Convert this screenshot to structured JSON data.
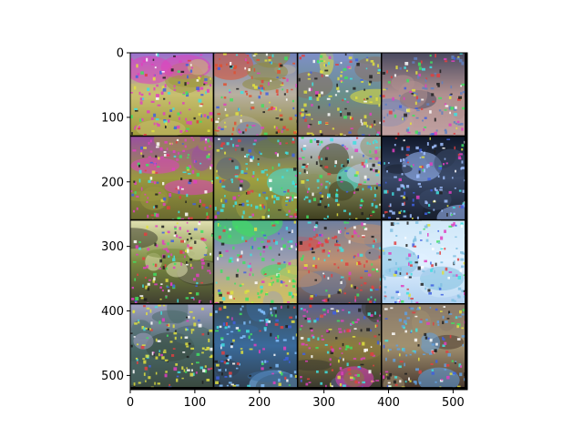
{
  "chart_data": {
    "type": "image",
    "description_source": "matplotlib imshow of a 4x4 grid of generated sky/landscape tiles",
    "xlim": [
      0,
      522
    ],
    "ylim": [
      522,
      0
    ],
    "tile_size": 128,
    "grid": {
      "rows": 4,
      "cols": 4,
      "separator_px": 2,
      "separator_color": "#000000"
    },
    "x_ticks": [
      0,
      100,
      200,
      300,
      400,
      500
    ],
    "y_ticks": [
      0,
      100,
      200,
      300,
      400,
      500
    ],
    "x_tick_labels": [
      "0",
      "100",
      "200",
      "300",
      "400",
      "500"
    ],
    "y_tick_labels": [
      "0",
      "100",
      "200",
      "300",
      "400",
      "500"
    ],
    "xlabel": "",
    "ylabel": "",
    "title": "",
    "tiles": [
      {
        "row": 0,
        "col": 0,
        "top": "#9a6fd0",
        "mid": "#c8c070",
        "bottom": "#9f9a3a",
        "accent": "#e040c0"
      },
      {
        "row": 0,
        "col": 1,
        "top": "#6f7fb8",
        "mid": "#b8b0a0",
        "bottom": "#8f8a40",
        "accent": "#e05030"
      },
      {
        "row": 0,
        "col": 2,
        "top": "#7e8fc8",
        "mid": "#6a8f8a",
        "bottom": "#8a7060",
        "accent": "#e0e040"
      },
      {
        "row": 0,
        "col": 3,
        "top": "#4a4a60",
        "mid": "#b09090",
        "bottom": "#c0a0a0",
        "accent": "#6080c0"
      },
      {
        "row": 1,
        "col": 0,
        "top": "#9a4fa0",
        "mid": "#9a9840",
        "bottom": "#6a6a30",
        "accent": "#e040c0"
      },
      {
        "row": 1,
        "col": 1,
        "top": "#5a6080",
        "mid": "#a0a040",
        "bottom": "#6a7a40",
        "accent": "#40e0e0"
      },
      {
        "row": 1,
        "col": 2,
        "top": "#c0c8e8",
        "mid": "#8a9060",
        "bottom": "#404020",
        "accent": "#40e0e0"
      },
      {
        "row": 1,
        "col": 3,
        "top": "#10182a",
        "mid": "#3a4a6a",
        "bottom": "#1a2030",
        "accent": "#a0c0ff"
      },
      {
        "row": 2,
        "col": 0,
        "top": "#e0e0b0",
        "mid": "#7a8a40",
        "bottom": "#404030",
        "accent": "#e040c0"
      },
      {
        "row": 2,
        "col": 1,
        "top": "#6080b0",
        "mid": "#a0a0b0",
        "bottom": "#d0c060",
        "accent": "#40e060"
      },
      {
        "row": 2,
        "col": 2,
        "top": "#7080a0",
        "mid": "#c09070",
        "bottom": "#505060",
        "accent": "#e04040"
      },
      {
        "row": 2,
        "col": 3,
        "top": "#d0e8f8",
        "mid": "#e0f0ff",
        "bottom": "#b0d0f0",
        "accent": "#80c0e0"
      },
      {
        "row": 3,
        "col": 0,
        "top": "#a0a0c0",
        "mid": "#4a6a6a",
        "bottom": "#3a4a40",
        "accent": "#e0e040"
      },
      {
        "row": 3,
        "col": 1,
        "top": "#3a5060",
        "mid": "#3a6a9a",
        "bottom": "#304050",
        "accent": "#80c0ff"
      },
      {
        "row": 3,
        "col": 2,
        "top": "#5a6090",
        "mid": "#8a7a40",
        "bottom": "#3a3a30",
        "accent": "#e040c0"
      },
      {
        "row": 3,
        "col": 3,
        "top": "#8a7a6a",
        "mid": "#a09070",
        "bottom": "#4a3a30",
        "accent": "#60a0e0"
      }
    ]
  }
}
